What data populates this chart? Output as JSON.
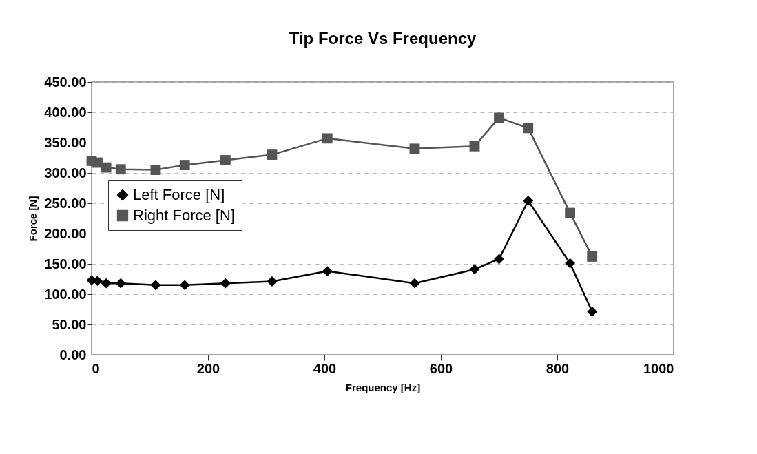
{
  "chart_data": {
    "type": "line",
    "title": "Tip Force Vs Frequency",
    "xlabel": "Frequency [Hz]",
    "ylabel": "Force [N]",
    "xlim": [
      0,
      1000
    ],
    "xticks": [
      0,
      200,
      400,
      600,
      800,
      1000
    ],
    "ylim": [
      0,
      450
    ],
    "yticks": [
      {
        "value": 0,
        "label": "0.00"
      },
      {
        "value": 50,
        "label": "50.00"
      },
      {
        "value": 100,
        "label": "100.00"
      },
      {
        "value": 150,
        "label": "150.00"
      },
      {
        "value": 200,
        "label": "200.00"
      },
      {
        "value": 250,
        "label": "250.00"
      },
      {
        "value": 300,
        "label": "300.00"
      },
      {
        "value": 350,
        "label": "350.00"
      },
      {
        "value": 400,
        "label": "400.00"
      },
      {
        "value": 450,
        "label": "450.00"
      }
    ],
    "grid": "y",
    "legend": "left",
    "series": [
      {
        "name": "Left Force [N]",
        "color": "#000000",
        "marker": "diamond",
        "x": [
          0,
          10,
          25,
          50,
          110,
          160,
          230,
          310,
          405,
          555,
          658,
          700,
          750,
          822,
          860
        ],
        "values": [
          123,
          122,
          118,
          118,
          115,
          115,
          118,
          121,
          138,
          118,
          141,
          158,
          254,
          151,
          71
        ]
      },
      {
        "name": "Right Force [N]",
        "color": "#555555",
        "marker": "square",
        "x": [
          0,
          10,
          25,
          50,
          110,
          160,
          230,
          310,
          405,
          555,
          658,
          700,
          750,
          822,
          860
        ],
        "values": [
          320,
          317,
          309,
          306,
          305,
          313,
          321,
          330,
          357,
          340,
          344,
          391,
          374,
          234,
          162
        ]
      }
    ]
  }
}
